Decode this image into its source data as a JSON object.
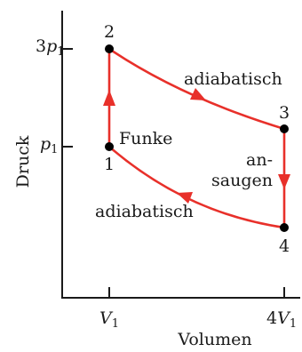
{
  "axes": {
    "y_label": "Druck",
    "x_label": "Volumen",
    "y_ticks": [
      {
        "prefix": "3",
        "symbol": "p",
        "sub": "1"
      },
      {
        "prefix": "",
        "symbol": "p",
        "sub": "1"
      }
    ],
    "x_ticks": [
      {
        "prefix": "",
        "symbol": "V",
        "sub": "1"
      },
      {
        "prefix": "4",
        "symbol": "V",
        "sub": "1"
      }
    ]
  },
  "points": [
    {
      "label": "1"
    },
    {
      "label": "2"
    },
    {
      "label": "3"
    },
    {
      "label": "4"
    }
  ],
  "annotations": {
    "spark": "Funke",
    "adiabatic_upper": "adiabatisch",
    "adiabatic_lower": "adiabatisch",
    "intake_line1": "an-",
    "intake_line2": "saugen"
  },
  "colors": {
    "process": "#e8302a",
    "axes": "#1a1a1a",
    "points": "#000000"
  }
}
